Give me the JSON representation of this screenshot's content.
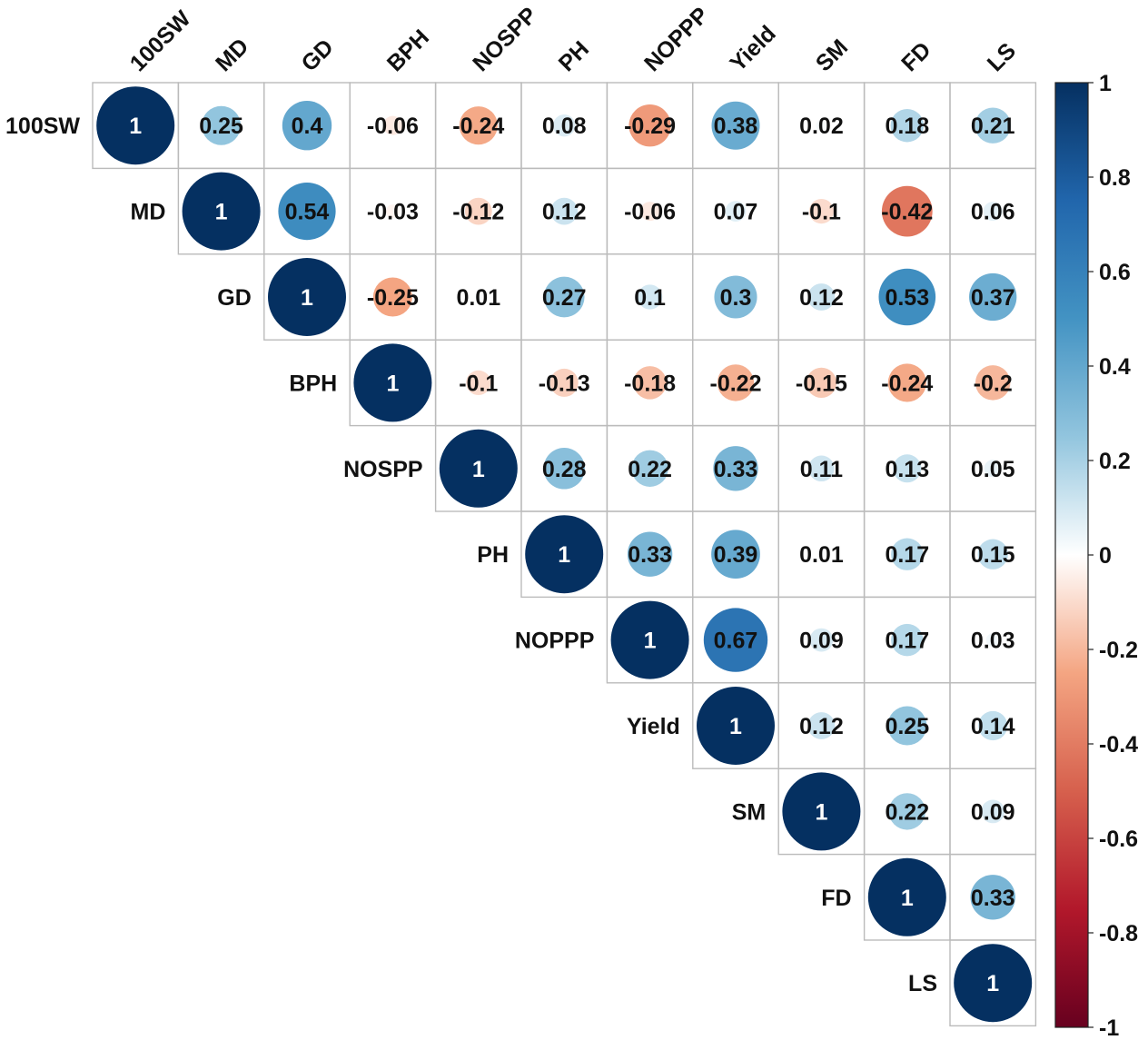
{
  "chart_data": {
    "type": "heatmap",
    "subtype": "correlation-matrix-upper-circle",
    "variables": [
      "100SW",
      "MD",
      "GD",
      "BPH",
      "NOSPP",
      "PH",
      "NOPPP",
      "Yield",
      "SM",
      "FD",
      "LS"
    ],
    "matrix": [
      [
        1,
        0.25,
        0.4,
        -0.06,
        -0.24,
        0.08,
        -0.29,
        0.38,
        0.02,
        0.18,
        0.21
      ],
      [
        null,
        1,
        0.54,
        -0.03,
        -0.12,
        0.12,
        -0.06,
        0.07,
        -0.1,
        -0.42,
        0.06
      ],
      [
        null,
        null,
        1,
        -0.25,
        0.01,
        0.27,
        0.1,
        0.3,
        0.12,
        0.53,
        0.37
      ],
      [
        null,
        null,
        null,
        1,
        -0.1,
        -0.13,
        -0.18,
        -0.22,
        -0.15,
        -0.24,
        -0.2
      ],
      [
        null,
        null,
        null,
        null,
        1,
        0.28,
        0.22,
        0.33,
        0.11,
        0.13,
        0.05
      ],
      [
        null,
        null,
        null,
        null,
        null,
        1,
        0.33,
        0.39,
        0.01,
        0.17,
        0.15
      ],
      [
        null,
        null,
        null,
        null,
        null,
        null,
        1,
        0.67,
        0.09,
        0.17,
        0.03
      ],
      [
        null,
        null,
        null,
        null,
        null,
        null,
        null,
        1,
        0.12,
        0.25,
        0.14
      ],
      [
        null,
        null,
        null,
        null,
        null,
        null,
        null,
        null,
        1,
        0.22,
        0.09
      ],
      [
        null,
        null,
        null,
        null,
        null,
        null,
        null,
        null,
        null,
        1,
        0.33
      ],
      [
        null,
        null,
        null,
        null,
        null,
        null,
        null,
        null,
        null,
        null,
        1
      ]
    ],
    "value_labels": [
      [
        "1",
        "0.25",
        "0.4",
        "-0.06",
        "-0.24",
        "0.08",
        "-0.29",
        "0.38",
        "0.02",
        "0.18",
        "0.21"
      ],
      [
        null,
        "1",
        "0.54",
        "-0.03",
        "-0.12",
        "0.12",
        "-0.06",
        "0.07",
        "-0.1",
        "-0.42",
        "0.06"
      ],
      [
        null,
        null,
        "1",
        "-0.25",
        "0.01",
        "0.27",
        "0.1",
        "0.3",
        "0.12",
        "0.53",
        "0.37"
      ],
      [
        null,
        null,
        null,
        "1",
        "-0.1",
        "-0.13",
        "-0.18",
        "-0.22",
        "-0.15",
        "-0.24",
        "-0.2"
      ],
      [
        null,
        null,
        null,
        null,
        "1",
        "0.28",
        "0.22",
        "0.33",
        "0.11",
        "0.13",
        "0.05"
      ],
      [
        null,
        null,
        null,
        null,
        null,
        "1",
        "0.33",
        "0.39",
        "0.01",
        "0.17",
        "0.15"
      ],
      [
        null,
        null,
        null,
        null,
        null,
        null,
        "1",
        "0.67",
        "0.09",
        "0.17",
        "0.03"
      ],
      [
        null,
        null,
        null,
        null,
        null,
        null,
        null,
        "1",
        "0.12",
        "0.25",
        "0.14"
      ],
      [
        null,
        null,
        null,
        null,
        null,
        null,
        null,
        null,
        "1",
        "0.22",
        "0.09"
      ],
      [
        null,
        null,
        null,
        null,
        null,
        null,
        null,
        null,
        null,
        "1",
        "0.33"
      ],
      [
        null,
        null,
        null,
        null,
        null,
        null,
        null,
        null,
        null,
        null,
        "1"
      ]
    ],
    "color_scale": {
      "range": [
        -1,
        1
      ],
      "ticks": [
        1,
        0.8,
        0.6,
        0.4,
        0.2,
        0,
        -0.2,
        -0.4,
        -0.6,
        -0.8,
        -1
      ],
      "tick_labels": [
        "1",
        "0.8",
        "0.6",
        "0.4",
        "0.2",
        "0",
        "-0.2",
        "-0.4",
        "-0.6",
        "-0.8",
        "-1"
      ],
      "stops": [
        {
          "value": -1,
          "color": "#67001F"
        },
        {
          "value": -0.75,
          "color": "#B2182B"
        },
        {
          "value": -0.5,
          "color": "#D6604D"
        },
        {
          "value": -0.25,
          "color": "#F4A582"
        },
        {
          "value": 0,
          "color": "#FFFFFF"
        },
        {
          "value": 0.25,
          "color": "#92C5DE"
        },
        {
          "value": 0.5,
          "color": "#4393C3"
        },
        {
          "value": 0.75,
          "color": "#2166AC"
        },
        {
          "value": 1,
          "color": "#053061"
        }
      ]
    },
    "legend_position": "right",
    "grid_color": "#bbbbbb"
  }
}
